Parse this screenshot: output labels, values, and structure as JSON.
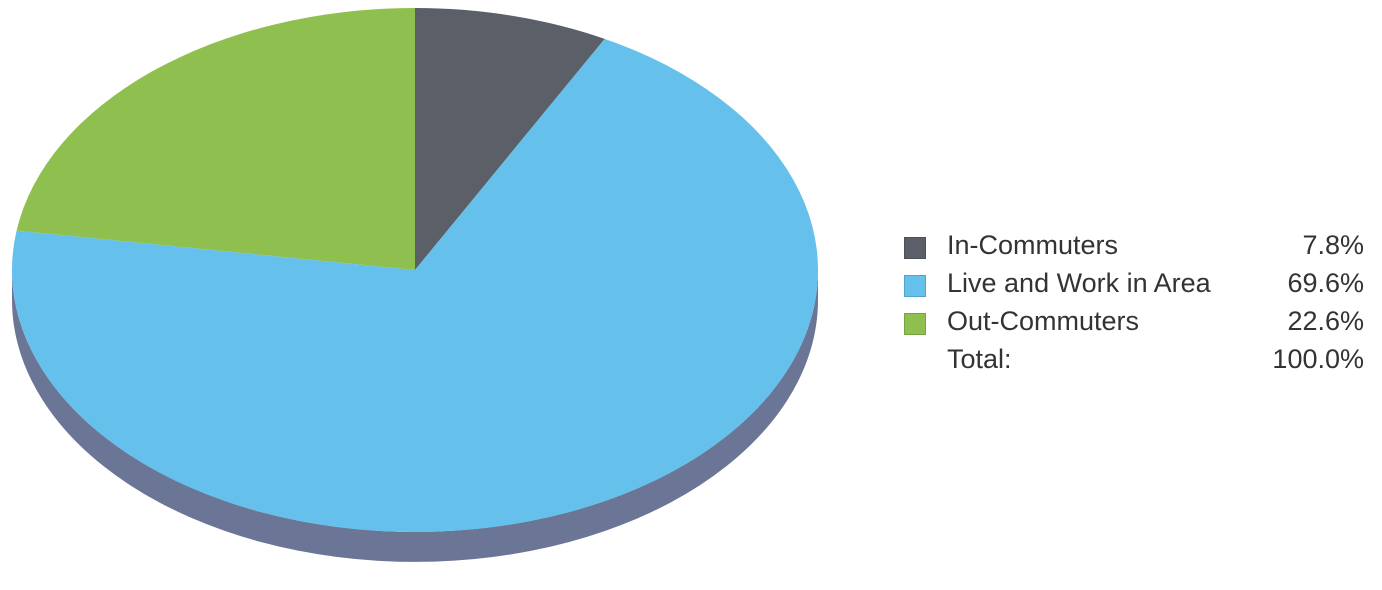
{
  "chart_data": {
    "type": "pie",
    "slices": [
      {
        "label": "In-Commuters",
        "value": 7.8,
        "display": "7.8%",
        "color": "#5b6068"
      },
      {
        "label": "Live and Work in Area",
        "value": 69.6,
        "display": "69.6%",
        "color": "#66c0ec"
      },
      {
        "label": "Out-Commuters",
        "value": 22.6,
        "display": "22.6%",
        "color": "#8fbf4f"
      }
    ],
    "total": {
      "label": "Total:",
      "display": "100.0%"
    },
    "legend_position": "right",
    "edge_color": "#6b7596"
  }
}
